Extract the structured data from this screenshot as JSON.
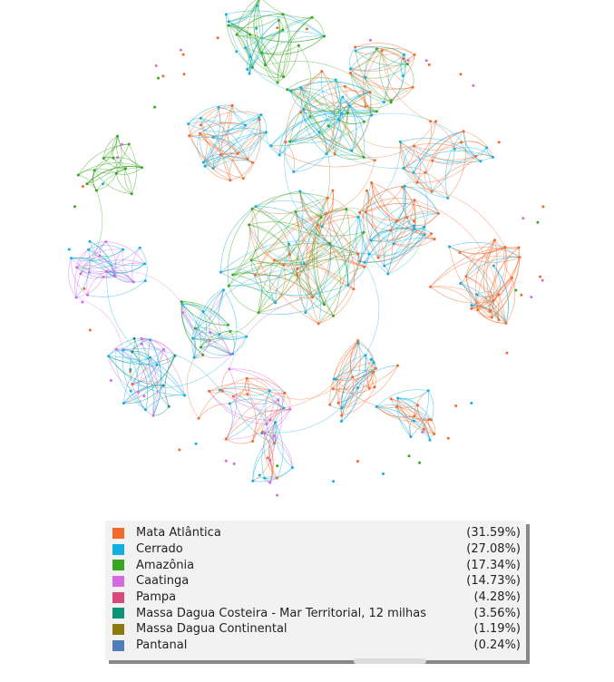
{
  "legend": {
    "items": [
      {
        "label": "Mata Atlântica",
        "percent": "(31.59%)",
        "color": "#f26b2d"
      },
      {
        "label": "Cerrado",
        "percent": "(27.08%)",
        "color": "#11b0e0"
      },
      {
        "label": "Amazônia",
        "percent": "(17.34%)",
        "color": "#3aa520"
      },
      {
        "label": "Caatinga",
        "percent": "(14.73%)",
        "color": "#d56be0"
      },
      {
        "label": "Pampa",
        "percent": "(4.28%)",
        "color": "#d94a7c"
      },
      {
        "label": "Massa Dagua Costeira - Mar Territorial, 12 milhas",
        "percent": "(3.56%)",
        "color": "#0f9378"
      },
      {
        "label": "Massa Dagua Continental",
        "percent": "(1.19%)",
        "color": "#8c7a10"
      },
      {
        "label": "Pantanal",
        "percent": "(0.24%)",
        "color": "#4f7db8"
      }
    ]
  }
}
